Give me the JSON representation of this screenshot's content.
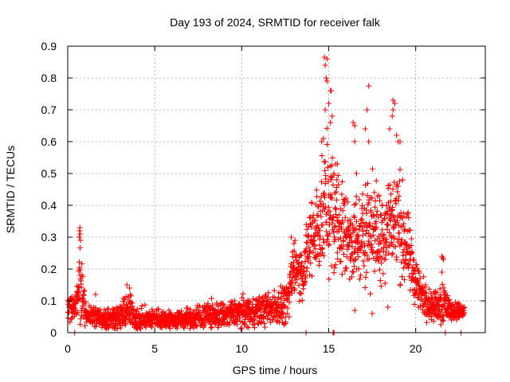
{
  "chart_data": {
    "type": "scatter",
    "title": "Day 193 of 2024, SRMTID for receiver falk",
    "xlabel": "GPS time / hours",
    "ylabel": "SRMTID / TECUs",
    "xlim": [
      0,
      24
    ],
    "ylim": [
      0,
      0.9
    ],
    "xticks": [
      "0",
      "5",
      "10",
      "15",
      "20"
    ],
    "yticks": [
      "0",
      "0.1",
      "0.2",
      "0.3",
      "0.4",
      "0.5",
      "0.6",
      "0.7",
      "0.8",
      "0.9"
    ],
    "grid": true,
    "marker": "+",
    "color": "#ff0000",
    "series": [
      {
        "name": "SRMTID",
        "profile": [
          [
            0.0,
            0.08,
            0.03
          ],
          [
            0.5,
            0.09,
            0.03
          ],
          [
            0.7,
            0.16,
            0.1
          ],
          [
            1.0,
            0.06,
            0.03
          ],
          [
            2.0,
            0.045,
            0.025
          ],
          [
            3.0,
            0.05,
            0.03
          ],
          [
            3.5,
            0.07,
            0.04
          ],
          [
            4.0,
            0.04,
            0.025
          ],
          [
            5.0,
            0.045,
            0.025
          ],
          [
            6.0,
            0.04,
            0.02
          ],
          [
            7.0,
            0.04,
            0.025
          ],
          [
            8.0,
            0.055,
            0.03
          ],
          [
            9.0,
            0.055,
            0.03
          ],
          [
            10.0,
            0.065,
            0.035
          ],
          [
            11.0,
            0.07,
            0.035
          ],
          [
            12.0,
            0.08,
            0.04
          ],
          [
            12.7,
            0.1,
            0.05
          ],
          [
            13.0,
            0.22,
            0.06
          ],
          [
            13.5,
            0.18,
            0.06
          ],
          [
            14.0,
            0.3,
            0.1
          ],
          [
            14.5,
            0.35,
            0.12
          ],
          [
            14.9,
            0.4,
            0.15
          ],
          [
            15.2,
            0.38,
            0.14
          ],
          [
            15.7,
            0.33,
            0.12
          ],
          [
            16.2,
            0.3,
            0.1
          ],
          [
            16.8,
            0.28,
            0.1
          ],
          [
            17.3,
            0.35,
            0.13
          ],
          [
            17.8,
            0.3,
            0.11
          ],
          [
            18.3,
            0.33,
            0.12
          ],
          [
            18.8,
            0.36,
            0.14
          ],
          [
            19.3,
            0.3,
            0.11
          ],
          [
            19.8,
            0.2,
            0.07
          ],
          [
            20.3,
            0.12,
            0.05
          ],
          [
            21.0,
            0.08,
            0.03
          ],
          [
            21.6,
            0.1,
            0.06
          ],
          [
            22.0,
            0.07,
            0.02
          ],
          [
            22.8,
            0.065,
            0.02
          ]
        ],
        "highlights": [
          [
            0.7,
            0.33
          ],
          [
            0.68,
            0.32
          ],
          [
            0.72,
            0.31
          ],
          [
            0.66,
            0.3
          ],
          [
            0.74,
            0.29
          ],
          [
            0.7,
            0.18
          ],
          [
            3.4,
            0.15
          ],
          [
            3.55,
            0.14
          ],
          [
            3.6,
            0.12
          ],
          [
            1.6,
            0.12
          ],
          [
            12.85,
            0.3
          ],
          [
            13.0,
            0.28
          ],
          [
            14.75,
            0.865
          ],
          [
            14.9,
            0.86
          ],
          [
            14.8,
            0.84
          ],
          [
            14.85,
            0.8
          ],
          [
            14.9,
            0.79
          ],
          [
            15.1,
            0.76
          ],
          [
            15.15,
            0.76
          ],
          [
            15.0,
            0.72
          ],
          [
            14.8,
            0.7
          ],
          [
            15.2,
            0.68
          ],
          [
            15.1,
            0.66
          ],
          [
            14.7,
            0.61
          ],
          [
            14.6,
            0.6
          ],
          [
            16.4,
            0.66
          ],
          [
            16.5,
            0.65
          ],
          [
            16.5,
            0.6
          ],
          [
            17.3,
            0.775
          ],
          [
            17.2,
            0.7
          ],
          [
            17.1,
            0.64
          ],
          [
            17.3,
            0.6
          ],
          [
            18.7,
            0.73
          ],
          [
            18.8,
            0.72
          ],
          [
            18.7,
            0.7
          ],
          [
            18.65,
            0.68
          ],
          [
            18.9,
            0.62
          ],
          [
            19.0,
            0.6
          ],
          [
            19.1,
            0.6
          ],
          [
            18.5,
            0.64
          ],
          [
            15.4,
            0.53
          ],
          [
            15.5,
            0.53
          ],
          [
            15.3,
            0.5
          ],
          [
            16.6,
            0.5
          ],
          [
            16.9,
            0.39
          ],
          [
            16.5,
            0.07
          ],
          [
            17.5,
            0.06
          ],
          [
            18.4,
            0.08
          ],
          [
            21.5,
            0.24
          ],
          [
            21.55,
            0.235
          ],
          [
            21.6,
            0.23
          ],
          [
            21.5,
            0.19
          ],
          [
            13.7,
            0.0
          ],
          [
            15.25,
            0.0
          ],
          [
            15.3,
            0.0
          ],
          [
            21.7,
            0.0
          ],
          [
            22.6,
            0.0
          ],
          [
            0.4,
            0.0
          ]
        ]
      }
    ]
  }
}
